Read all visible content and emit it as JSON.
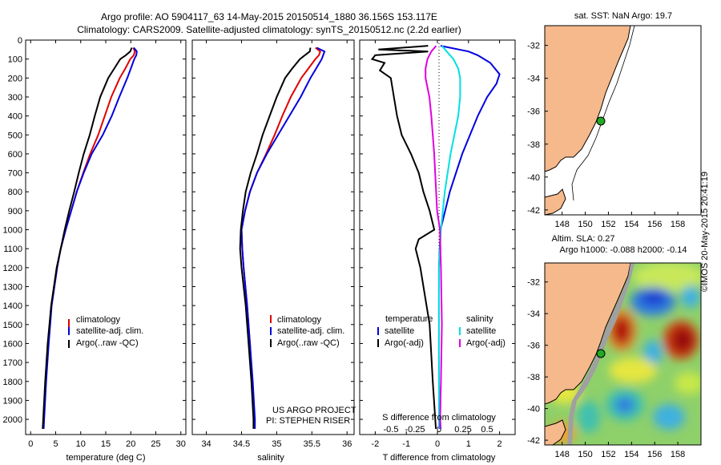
{
  "header": {
    "line1": "Argo profile: AO 5904117_63 14-May-2015 20150514_1880 36.156S 153.117E",
    "line2": "Climatology: CARS2009. Satellite-adjusted climatology: synTS_20150512.nc (2.2d earlier)"
  },
  "colors": {
    "climatology": "#e00000",
    "satellite": "#0000e0",
    "argo": "#000000",
    "cyan": "#00e0e0",
    "magenta": "#e000e0",
    "land": "#f5b98b",
    "deep": "#a0a0a0"
  },
  "chart_data": [
    {
      "id": "temp",
      "type": "line",
      "xlabel": "temperature (deg C)",
      "ylabel": "",
      "xlim": [
        -1,
        31
      ],
      "ylim": [
        2080,
        0
      ],
      "xticks": [
        "0",
        "5",
        "10",
        "15",
        "20",
        "25",
        "30"
      ],
      "xtick_values": [
        0,
        5,
        10,
        15,
        20,
        25,
        30
      ],
      "yticks": [
        "0",
        "100",
        "200",
        "300",
        "400",
        "500",
        "600",
        "700",
        "800",
        "900",
        "1000",
        "1100",
        "1200",
        "1300",
        "1400",
        "1500",
        "1600",
        "1700",
        "1800",
        "1900",
        "2000"
      ],
      "ytick_values": [
        0,
        100,
        200,
        300,
        400,
        500,
        600,
        700,
        800,
        900,
        1000,
        1100,
        1200,
        1300,
        1400,
        1500,
        1600,
        1700,
        1800,
        1900,
        2000
      ],
      "legend": [
        "climatology",
        "satellite-adj. clim.",
        "Argo(..raw -QC)"
      ],
      "series": [
        {
          "name": "climatology",
          "depth": [
            40,
            60,
            80,
            100,
            150,
            200,
            300,
            400,
            500,
            600,
            700,
            800,
            900,
            1000,
            1100,
            1200,
            1400,
            1600,
            1800,
            2000,
            2050
          ],
          "values": [
            20.5,
            20.8,
            20.6,
            19.9,
            18.9,
            17.8,
            16.1,
            14.8,
            13.5,
            11.9,
            10.5,
            9.2,
            8.1,
            7.0,
            6.0,
            5.2,
            4.1,
            3.5,
            3.0,
            2.6,
            2.5
          ]
        },
        {
          "name": "satellite",
          "depth": [
            40,
            60,
            80,
            100,
            150,
            200,
            300,
            400,
            500,
            600,
            700,
            800,
            900,
            1000,
            1100,
            1200,
            1400,
            1600,
            1800,
            2000,
            2050
          ],
          "values": [
            20.6,
            21.2,
            21.1,
            20.7,
            20.0,
            19.3,
            17.7,
            16.2,
            14.4,
            12.2,
            10.6,
            9.2,
            8.1,
            7.0,
            6.0,
            5.3,
            4.2,
            3.6,
            3.1,
            2.7,
            2.6
          ]
        },
        {
          "name": "Argo",
          "depth": [
            40,
            60,
            80,
            100,
            150,
            200,
            300,
            400,
            500,
            600,
            700,
            800,
            900,
            1000,
            1100,
            1200,
            1400,
            1600,
            1800,
            2000,
            2050
          ],
          "values": [
            20.2,
            19.9,
            19.0,
            17.9,
            16.7,
            15.5,
            13.9,
            12.8,
            11.8,
            10.6,
            9.6,
            8.7,
            7.7,
            6.8,
            6.0,
            5.2,
            4.1,
            3.4,
            2.9,
            2.5,
            2.4
          ]
        }
      ]
    },
    {
      "id": "salinity",
      "type": "line",
      "xlabel": "salinity",
      "ylabel": "",
      "xlim": [
        33.8,
        36.1
      ],
      "ylim": [
        2080,
        0
      ],
      "xticks": [
        "34",
        "34.5",
        "35",
        "35.5",
        "36"
      ],
      "xtick_values": [
        34,
        34.5,
        35,
        35.5,
        36
      ],
      "legend": [
        "climatology",
        "satellite-adj. clim.",
        "Argo(..raw -QC)"
      ],
      "annotations": [
        "US ARGO PROJECT",
        "PI: STEPHEN RISER"
      ],
      "series": [
        {
          "name": "climatology",
          "depth": [
            40,
            60,
            80,
            100,
            150,
            200,
            300,
            400,
            500,
            600,
            700,
            800,
            900,
            1000,
            1100,
            1200,
            1400,
            1600,
            1800,
            2000,
            2050
          ],
          "values": [
            35.55,
            35.62,
            35.6,
            35.55,
            35.45,
            35.35,
            35.2,
            35.08,
            34.97,
            34.85,
            34.72,
            34.62,
            34.55,
            34.5,
            34.51,
            34.53,
            34.58,
            34.62,
            34.65,
            34.68,
            34.68
          ]
        },
        {
          "name": "satellite",
          "depth": [
            40,
            60,
            80,
            100,
            150,
            200,
            300,
            400,
            500,
            600,
            700,
            800,
            900,
            1000,
            1100,
            1200,
            1400,
            1600,
            1800,
            2000,
            2050
          ],
          "values": [
            35.57,
            35.68,
            35.66,
            35.64,
            35.56,
            35.48,
            35.34,
            35.18,
            35.02,
            34.86,
            34.72,
            34.62,
            34.55,
            34.5,
            34.51,
            34.53,
            34.58,
            34.62,
            34.66,
            34.69,
            34.69
          ]
        },
        {
          "name": "Argo",
          "depth": [
            40,
            60,
            80,
            100,
            150,
            200,
            300,
            400,
            500,
            600,
            700,
            800,
            900,
            1000,
            1100,
            1200,
            1400,
            1600,
            1800,
            2000,
            2050
          ],
          "values": [
            35.48,
            35.47,
            35.4,
            35.33,
            35.22,
            35.12,
            35.0,
            34.9,
            34.8,
            34.72,
            34.63,
            34.56,
            34.52,
            34.49,
            34.48,
            34.5,
            34.56,
            34.6,
            34.64,
            34.67,
            34.67
          ]
        }
      ]
    },
    {
      "id": "difference",
      "type": "line",
      "xlabel": "T difference from climatology",
      "xlabel_top": "S difference from climatology",
      "xlim": [
        -2.5,
        2.5
      ],
      "ylim": [
        2080,
        0
      ],
      "xticks": [
        "-2",
        "-1",
        "0",
        "1",
        "2"
      ],
      "xtick_values": [
        -2,
        -1,
        0,
        1,
        2
      ],
      "s_ticks": [
        "-0.5",
        "-0.25",
        "0",
        "0.25",
        "0.5"
      ],
      "s_tick_values": [
        -0.5,
        -0.25,
        0,
        0.25,
        0.5
      ],
      "legend_left_title": "temperature",
      "legend_right_title": "salinity",
      "legend": [
        "satellite",
        "Argo(-adj)",
        "satellite",
        "Argo(-adj)"
      ],
      "series": [
        {
          "name": "T satellite",
          "depth": [
            30,
            60,
            80,
            120,
            180,
            230,
            300,
            400,
            600,
            800,
            1000,
            1200,
            1500,
            1800,
            2050
          ],
          "values": [
            0.1,
            1.0,
            1.3,
            1.7,
            2.0,
            1.9,
            1.6,
            1.3,
            0.8,
            0.4,
            0.1,
            0.05,
            0.05,
            0.05,
            0.1
          ]
        },
        {
          "name": "T Argo",
          "depth": [
            30,
            50,
            60,
            80,
            100,
            120,
            160,
            200,
            300,
            400,
            500,
            600,
            700,
            800,
            900,
            1000,
            1050,
            1100,
            1200,
            1500,
            1800,
            2050
          ],
          "values": [
            -0.3,
            -1.9,
            -0.3,
            -2.0,
            -2.1,
            -1.7,
            -1.85,
            -1.5,
            -1.4,
            -1.3,
            -1.15,
            -0.85,
            -0.6,
            -0.45,
            -0.25,
            -0.1,
            -0.6,
            -0.7,
            -0.55,
            -0.25,
            -0.15,
            -0.05
          ]
        },
        {
          "name": "S satellite",
          "depth": [
            30,
            60,
            100,
            150,
            200,
            300,
            400,
            600,
            800,
            1000,
            1200,
            1500,
            1800,
            2050
          ],
          "values": [
            0.03,
            0.08,
            0.15,
            0.2,
            0.22,
            0.22,
            0.2,
            0.12,
            0.06,
            0.02,
            0.0,
            0.0,
            0.0,
            0.0
          ]
        },
        {
          "name": "S Argo",
          "depth": [
            30,
            60,
            100,
            150,
            200,
            300,
            400,
            600,
            800,
            900,
            1000,
            1200,
            1500,
            1800,
            2050
          ],
          "values": [
            -0.03,
            -0.08,
            -0.12,
            -0.14,
            -0.14,
            -0.1,
            -0.08,
            -0.05,
            -0.03,
            -0.02,
            0.01,
            0.02,
            0.03,
            0.02,
            0.01
          ]
        }
      ]
    },
    {
      "id": "sst-map",
      "type": "map",
      "title": "sat. SST: NaN Argo: 19.7",
      "yticks": [
        "-32",
        "-34",
        "-36",
        "-38",
        "-40",
        "-42"
      ],
      "ytick_values": [
        -32,
        -34,
        -36,
        -38,
        -40,
        -42
      ],
      "xticks": [
        "148",
        "150",
        "152",
        "154",
        "156",
        "158"
      ],
      "xtick_values": [
        148,
        150,
        152,
        154,
        156,
        158
      ],
      "lon_range": [
        146.5,
        160.0
      ],
      "lat_range": [
        -42.3,
        -30.8
      ],
      "float_lon": 153.117,
      "float_lat": -36.156
    },
    {
      "id": "sla-map",
      "type": "map",
      "title": "Altim. SLA: 0.27",
      "subtitle": "Argo h1000: -0.088 h2000: -0.14",
      "yticks": [
        "-32",
        "-34",
        "-36",
        "-38",
        "-40",
        "-42"
      ],
      "ytick_values": [
        -32,
        -34,
        -36,
        -38,
        -40,
        -42
      ],
      "xticks": [
        "148",
        "150",
        "152",
        "154",
        "156",
        "158"
      ],
      "xtick_values": [
        148,
        150,
        152,
        154,
        156,
        158
      ],
      "lon_range": [
        146.5,
        160.0
      ],
      "lat_range": [
        -42.3,
        -30.8
      ],
      "float_lon": 153.117,
      "float_lat": -36.156
    }
  ],
  "footer": {
    "stamp": "©IMOS 20-May-2015 20:41:19"
  }
}
